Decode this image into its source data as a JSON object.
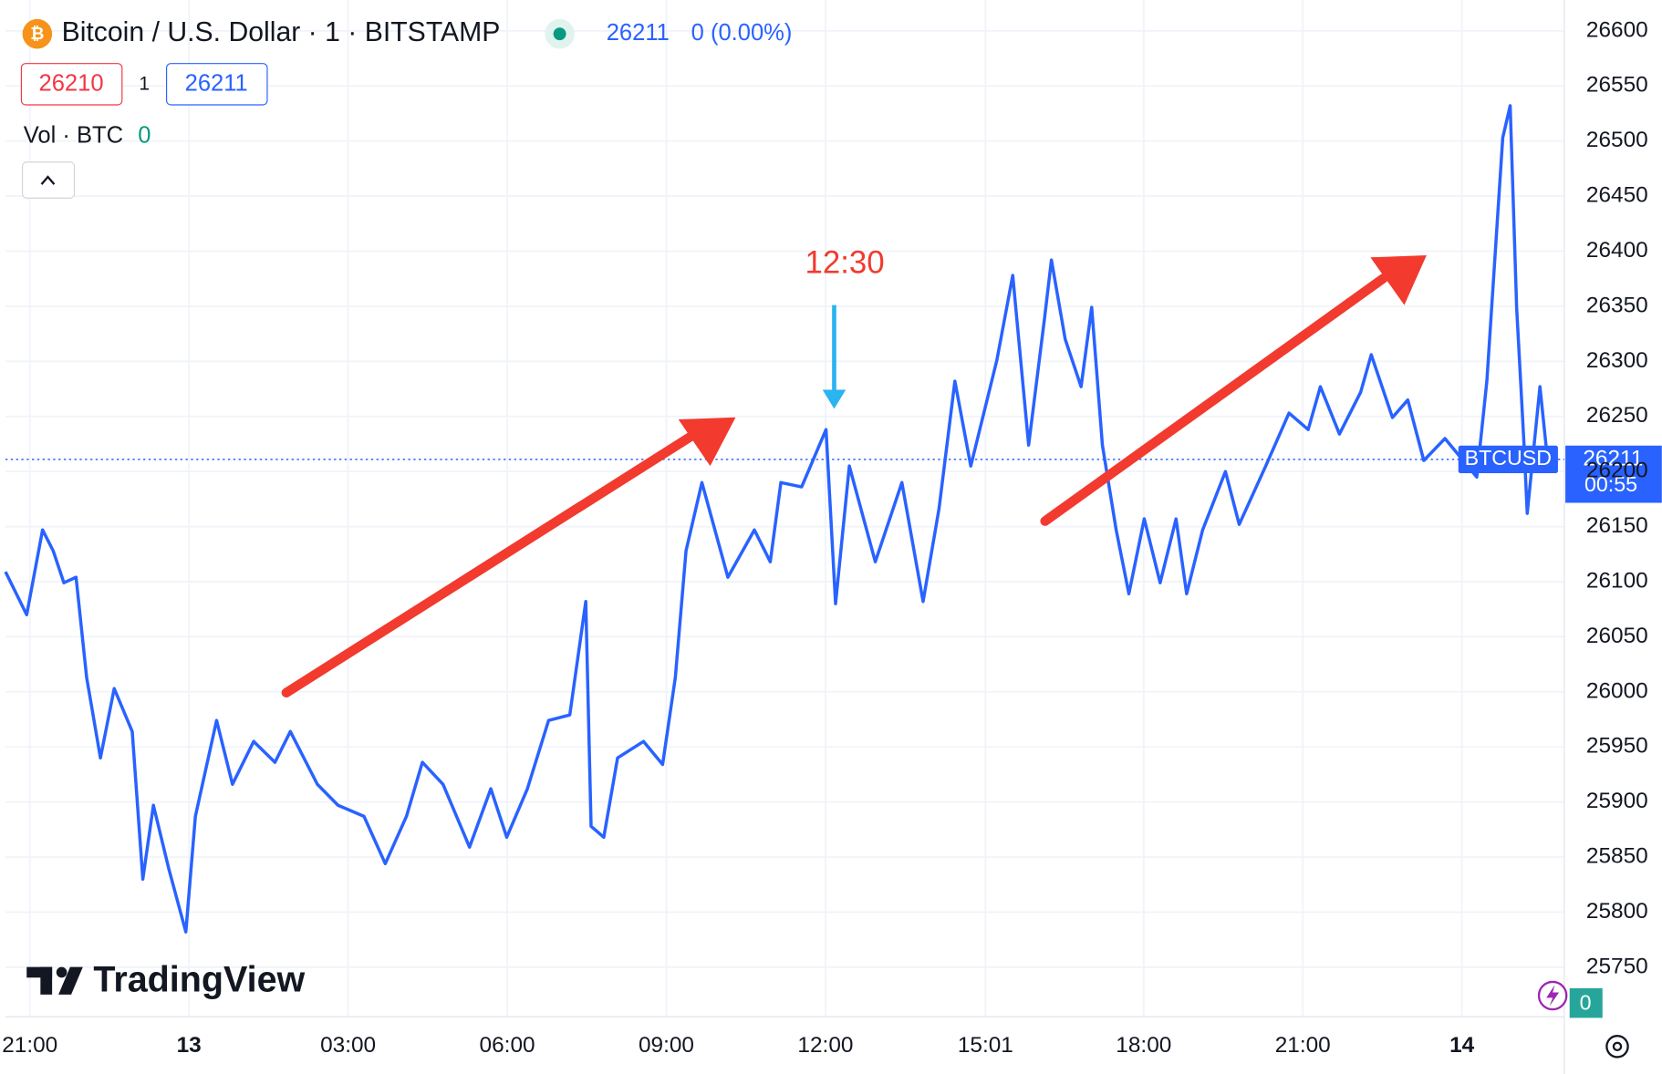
{
  "header": {
    "symbol": "Bitcoin / U.S. Dollar · 1 · BITSTAMP",
    "change": "0 (0.00%)",
    "bid": "26210",
    "spread": "1",
    "ask": "26211",
    "volume_label": "Vol · BTC",
    "volume_value": "0",
    "brand": "TradingView",
    "countdown": "00:55"
  },
  "chart_data": {
    "type": "line",
    "annotation": "12:30",
    "last_price": 26211,
    "x": [
      20.54,
      20.94,
      21.24,
      21.44,
      21.64,
      21.87,
      22.07,
      22.33,
      22.59,
      22.93,
      23.13,
      23.33,
      23.62,
      23.94,
      24.12,
      24.52,
      24.82,
      25.22,
      25.62,
      25.91,
      26.42,
      26.81,
      27.3,
      27.7,
      28.1,
      28.4,
      28.79,
      29.29,
      29.69,
      29.99,
      30.38,
      30.78,
      31.18,
      31.48,
      31.58,
      31.82,
      32.08,
      32.57,
      32.93,
      33.17,
      33.37,
      33.67,
      34.16,
      34.66,
      34.96,
      35.16,
      35.55,
      36.01,
      36.19,
      36.45,
      36.94,
      37.44,
      37.84,
      38.14,
      38.44,
      38.74,
      39.23,
      39.53,
      39.83,
      40.13,
      40.26,
      40.52,
      40.82,
      41.02,
      41.22,
      41.48,
      41.72,
      42.01,
      42.31,
      42.61,
      42.81,
      43.11,
      43.54,
      43.8,
      44.3,
      44.74,
      45.1,
      45.33,
      45.69,
      46.09,
      46.29,
      46.69,
      46.98,
      47.28,
      47.68,
      48.28,
      48.47,
      48.77,
      48.91,
      49.03,
      49.17,
      49.23,
      49.47,
      49.61
    ],
    "series": [
      {
        "name": "BTCUSD",
        "color": "#2962ff",
        "values": [
          26109,
          26070,
          26147,
          26128,
          26099,
          26104,
          26013,
          25940,
          26003,
          25964,
          25830,
          25897,
          25839,
          25782,
          25887,
          25974,
          25916,
          25955,
          25936,
          25964,
          25916,
          25897,
          25887,
          25844,
          25887,
          25936,
          25916,
          25859,
          25912,
          25868,
          25912,
          25974,
          25979,
          26082,
          25878,
          25868,
          25940,
          25955,
          25934,
          26013,
          26128,
          26190,
          26104,
          26147,
          26118,
          26190,
          26186,
          26238,
          26080,
          26205,
          26118,
          26190,
          26082,
          26166,
          26282,
          26205,
          26301,
          26378,
          26224,
          26339,
          26392,
          26320,
          26277,
          26349,
          26224,
          26147,
          26089,
          26157,
          26099,
          26157,
          26089,
          26147,
          26200,
          26152,
          26205,
          26253,
          26238,
          26277,
          26234,
          26272,
          26306,
          26249,
          26265,
          26210,
          26230,
          26195,
          26282,
          26503,
          26532,
          26349,
          26224,
          26162,
          26277,
          26212
        ]
      }
    ],
    "xlim": [
      20.54,
      49.93
    ],
    "xticks": [
      {
        "value": 21,
        "label": "21:00"
      },
      {
        "value": 24,
        "label": "13"
      },
      {
        "value": 27,
        "label": "03:00"
      },
      {
        "value": 30,
        "label": "06:00"
      },
      {
        "value": 33,
        "label": "09:00"
      },
      {
        "value": 36,
        "label": "12:00"
      },
      {
        "value": 39.017,
        "label": "15:01"
      },
      {
        "value": 42,
        "label": "18:00"
      },
      {
        "value": 45,
        "label": "21:00"
      },
      {
        "value": 48,
        "label": "14"
      }
    ],
    "ylim": [
      25705,
      26628
    ],
    "yticks": [
      25750,
      25800,
      25850,
      25900,
      25950,
      26000,
      26050,
      26100,
      26150,
      26200,
      26250,
      26300,
      26350,
      26400,
      26450,
      26500,
      26550,
      26600
    ],
    "grid": true
  }
}
